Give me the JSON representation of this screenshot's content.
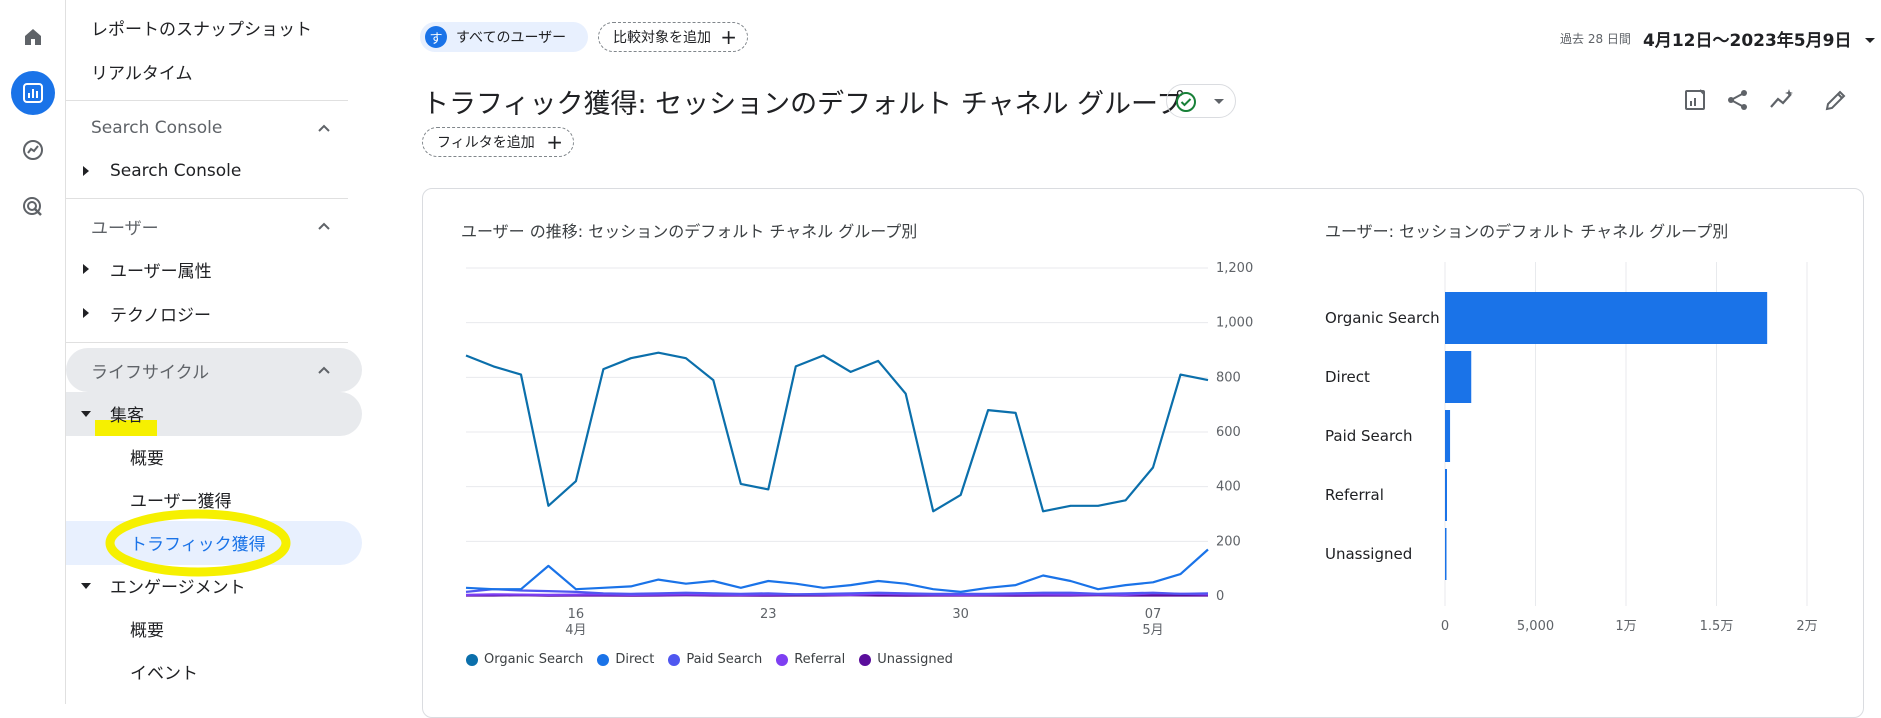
{
  "nav": {
    "top_items": [
      "レポートのスナップショット",
      "リアルタイム"
    ],
    "search_console_section": "Search Console",
    "search_console_item": "Search Console",
    "user_section": "ユーザー",
    "user_items": [
      "ユーザー属性",
      "テクノロジー"
    ],
    "lifecycle_section": "ライフサイクル",
    "acquisition": "集客",
    "acquisition_items": [
      "概要",
      "ユーザー獲得",
      "トラフィック獲得"
    ],
    "engagement": "エンゲージメント",
    "engagement_items": [
      "概要",
      "イベント"
    ]
  },
  "header": {
    "all_users_avatar": "す",
    "all_users": "すべてのユーザー",
    "add_comparison": "比較対象を追加",
    "date_label": "過去 28 日間",
    "date_range": "4月12日～2023年5月9日",
    "title": "トラフィック獲得: セッションのデフォルト チャネル グループ",
    "add_filter": "フィルタを追加"
  },
  "colors": {
    "organic": "#0b6fab",
    "direct": "#1a73e8",
    "paid": "#4f57f0",
    "referral": "#7e3ff2",
    "unassigned": "#5b0e9c",
    "bar": "#1a73e8",
    "highlight": "#f6f000"
  },
  "chart_data": [
    {
      "type": "line",
      "title": "ユーザー の推移: セッションのデフォルト チャネル グループ別",
      "ylim": [
        0,
        1200
      ],
      "y_ticks": [
        "1,200",
        "1,000",
        "800",
        "600",
        "400",
        "200",
        "0"
      ],
      "x_ticks": [
        {
          "label": "16",
          "sub": "4月",
          "index": 4
        },
        {
          "label": "23",
          "sub": "",
          "index": 11
        },
        {
          "label": "30",
          "sub": "",
          "index": 18
        },
        {
          "label": "07",
          "sub": "5月",
          "index": 25
        }
      ],
      "series": [
        {
          "name": "Organic Search",
          "values": [
            880,
            840,
            810,
            330,
            420,
            830,
            870,
            890,
            870,
            790,
            410,
            390,
            840,
            880,
            820,
            860,
            740,
            310,
            370,
            680,
            670,
            310,
            330,
            330,
            350,
            470,
            810,
            790
          ]
        },
        {
          "name": "Direct",
          "values": [
            30,
            25,
            25,
            110,
            25,
            30,
            35,
            60,
            45,
            55,
            30,
            55,
            45,
            30,
            40,
            55,
            45,
            25,
            15,
            30,
            40,
            75,
            55,
            25,
            40,
            50,
            80,
            170
          ]
        },
        {
          "name": "Paid Search",
          "values": [
            15,
            25,
            20,
            18,
            15,
            10,
            8,
            10,
            12,
            10,
            8,
            10,
            6,
            8,
            10,
            12,
            10,
            8,
            8,
            8,
            10,
            12,
            12,
            8,
            10,
            12,
            8,
            10
          ]
        },
        {
          "name": "Referral",
          "values": [
            4,
            6,
            5,
            4,
            5,
            6,
            4,
            5,
            6,
            5,
            4,
            5,
            6,
            5,
            4,
            8,
            6,
            5,
            4,
            5,
            6,
            6,
            5,
            6,
            4,
            10,
            8,
            6
          ]
        },
        {
          "name": "Unassigned",
          "values": [
            2,
            2,
            3,
            1,
            2,
            2,
            1,
            2,
            3,
            2,
            2,
            1,
            2,
            2,
            3,
            2,
            1,
            2,
            2,
            2,
            1,
            2,
            2,
            3,
            2,
            2,
            2,
            2
          ]
        }
      ]
    },
    {
      "type": "bar",
      "orientation": "horizontal",
      "title": "ユーザー: セッションのデフォルト チャネル グループ別",
      "categories": [
        "Organic Search",
        "Direct",
        "Paid Search",
        "Referral",
        "Unassigned"
      ],
      "values": [
        17800,
        1450,
        280,
        110,
        15
      ],
      "xlim": [
        0,
        20000
      ],
      "x_ticks": [
        "0",
        "5,000",
        "1万",
        "1.5万",
        "2万"
      ]
    }
  ]
}
